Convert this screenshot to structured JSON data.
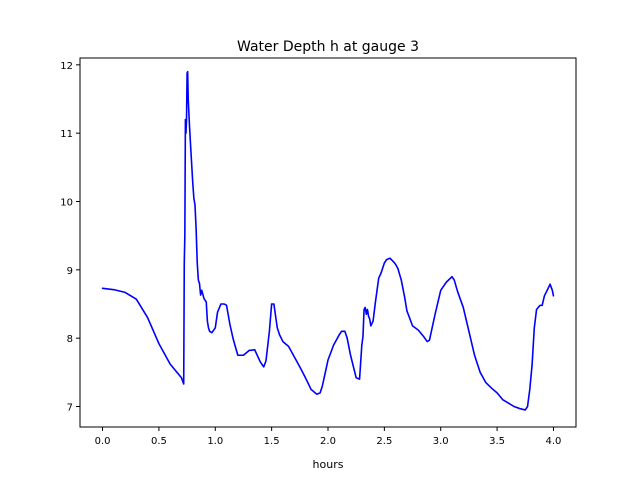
{
  "chart_data": {
    "type": "line",
    "title": "Water Depth h at gauge 3",
    "xlabel": "hours",
    "ylabel": "",
    "xlim": [
      -0.2,
      4.2
    ],
    "ylim": [
      6.7,
      12.1
    ],
    "xticks": [
      0.0,
      0.5,
      1.0,
      1.5,
      2.0,
      2.5,
      3.0,
      3.5,
      4.0
    ],
    "xtick_labels": [
      "0.0",
      "0.5",
      "1.0",
      "1.5",
      "2.0",
      "2.5",
      "3.0",
      "3.5",
      "4.0"
    ],
    "yticks": [
      7,
      8,
      9,
      10,
      11,
      12
    ],
    "ytick_labels": [
      "7",
      "8",
      "9",
      "10",
      "11",
      "12"
    ],
    "grid": false,
    "series": [
      {
        "color": "#0000ff",
        "x": [
          0.0,
          0.1,
          0.2,
          0.3,
          0.4,
          0.5,
          0.6,
          0.7,
          0.72,
          0.725,
          0.73,
          0.735,
          0.74,
          0.745,
          0.75,
          0.755,
          0.76,
          0.77,
          0.78,
          0.8,
          0.81,
          0.82,
          0.83,
          0.84,
          0.85,
          0.86,
          0.87,
          0.88,
          0.9,
          0.92,
          0.93,
          0.94,
          0.95,
          0.97,
          1.0,
          1.02,
          1.05,
          1.08,
          1.1,
          1.13,
          1.16,
          1.2,
          1.25,
          1.3,
          1.35,
          1.4,
          1.43,
          1.45,
          1.48,
          1.5,
          1.52,
          1.55,
          1.57,
          1.6,
          1.65,
          1.7,
          1.75,
          1.8,
          1.85,
          1.9,
          1.93,
          1.95,
          2.0,
          2.05,
          2.1,
          2.12,
          2.15,
          2.17,
          2.2,
          2.25,
          2.28,
          2.3,
          2.31,
          2.32,
          2.33,
          2.34,
          2.35,
          2.36,
          2.37,
          2.38,
          2.4,
          2.42,
          2.45,
          2.47,
          2.5,
          2.52,
          2.55,
          2.58,
          2.6,
          2.62,
          2.65,
          2.68,
          2.7,
          2.75,
          2.8,
          2.85,
          2.88,
          2.9,
          2.95,
          3.0,
          3.05,
          3.1,
          3.12,
          3.15,
          3.2,
          3.25,
          3.3,
          3.35,
          3.4,
          3.45,
          3.5,
          3.55,
          3.6,
          3.65,
          3.7,
          3.75,
          3.77,
          3.79,
          3.81,
          3.83,
          3.85,
          3.88,
          3.9,
          3.92,
          3.95,
          3.97,
          3.99,
          4.0
        ],
        "y": [
          8.73,
          8.71,
          8.67,
          8.57,
          8.3,
          7.92,
          7.62,
          7.42,
          7.33,
          9.1,
          9.5,
          11.2,
          11.0,
          11.2,
          11.88,
          11.9,
          11.5,
          11.15,
          10.85,
          10.28,
          10.05,
          9.95,
          9.6,
          9.1,
          8.85,
          8.8,
          8.63,
          8.7,
          8.58,
          8.53,
          8.25,
          8.15,
          8.1,
          8.08,
          8.15,
          8.38,
          8.5,
          8.5,
          8.48,
          8.2,
          7.98,
          7.75,
          7.75,
          7.82,
          7.83,
          7.65,
          7.58,
          7.67,
          8.1,
          8.5,
          8.5,
          8.15,
          8.05,
          7.95,
          7.88,
          7.73,
          7.58,
          7.42,
          7.25,
          7.18,
          7.2,
          7.3,
          7.68,
          7.9,
          8.05,
          8.1,
          8.1,
          8.0,
          7.75,
          7.42,
          7.4,
          7.9,
          8.02,
          8.42,
          8.45,
          8.35,
          8.42,
          8.32,
          8.28,
          8.18,
          8.25,
          8.52,
          8.88,
          8.95,
          9.1,
          9.15,
          9.17,
          9.12,
          9.08,
          9.02,
          8.85,
          8.6,
          8.4,
          8.18,
          8.12,
          8.02,
          7.95,
          7.97,
          8.35,
          8.7,
          8.82,
          8.9,
          8.85,
          8.68,
          8.45,
          8.1,
          7.75,
          7.5,
          7.35,
          7.27,
          7.2,
          7.1,
          7.05,
          7.0,
          6.97,
          6.95,
          7.0,
          7.25,
          7.6,
          8.15,
          8.42,
          8.48,
          8.48,
          8.62,
          8.72,
          8.79,
          8.7,
          8.62
        ]
      }
    ]
  }
}
